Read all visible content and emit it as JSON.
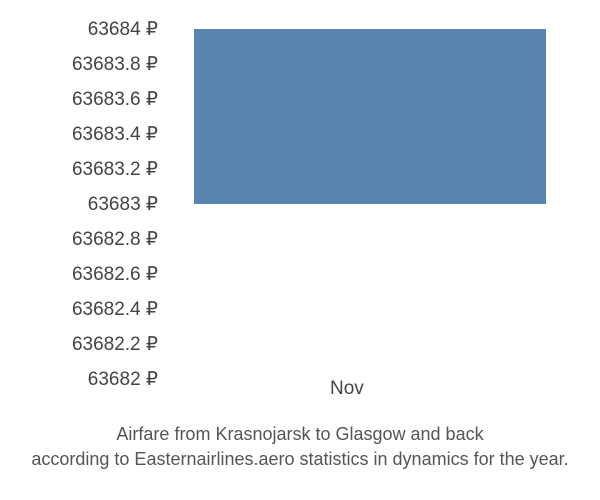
{
  "chart": {
    "type": "bar",
    "y_ticks": [
      "63684 ₽",
      "63683.8 ₽",
      "63683.6 ₽",
      "63683.4 ₽",
      "63683.2 ₽",
      "63683 ₽",
      "63682.8 ₽",
      "63682.6 ₽",
      "63682.4 ₽",
      "63682.2 ₽",
      "63682 ₽"
    ],
    "y_min": 63682,
    "y_max": 63684,
    "y_step": 0.2,
    "x_label": "Nov",
    "bar_value": 63683,
    "bar_color": "#5a84b0",
    "bar_left_pct": 6,
    "bar_width_pct": 88,
    "tick_fontsize": 19,
    "tick_color": "#444444",
    "background_color": "#ffffff",
    "caption_line1": "Airfare from Krasnojarsk to Glasgow and back",
    "caption_line2": "according to Easternairlines.aero statistics in dynamics for the year.",
    "caption_fontsize": 18,
    "caption_color": "#555555"
  }
}
